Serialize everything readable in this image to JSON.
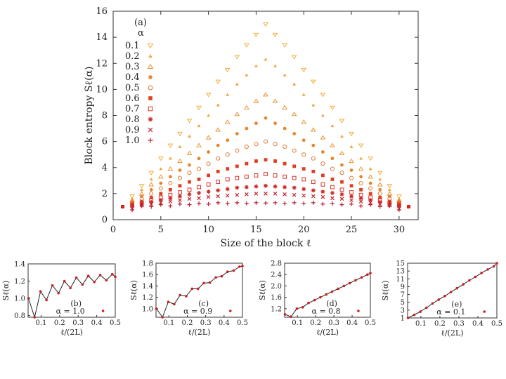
{
  "chart_data": {
    "main": {
      "type": "scatter",
      "panel_label": "(a)",
      "xlabel": "Size of the block ℓ",
      "ylabel": "Block entropy Sℓ(α)",
      "xlim": [
        0,
        32
      ],
      "ylim": [
        0,
        16
      ],
      "xticks": [
        "0",
        "5",
        "10",
        "15",
        "20",
        "25",
        "30"
      ],
      "yticks": [
        "0",
        "2",
        "4",
        "6",
        "8",
        "10",
        "12",
        "14",
        "16"
      ],
      "legend_title": "α",
      "legend_position": "top-left",
      "x": [
        1,
        2,
        3,
        4,
        5,
        6,
        7,
        8,
        9,
        10,
        11,
        12,
        13,
        14,
        15,
        16,
        17,
        18,
        19,
        20,
        21,
        22,
        23,
        24,
        25,
        26,
        27,
        28,
        29,
        30,
        31
      ],
      "series": [
        {
          "name": "0.1",
          "marker": "tri-down",
          "color": "#f0b040",
          "values": [
            1.0,
            1.8,
            2.6,
            3.6,
            4.7,
            5.7,
            6.6,
            7.6,
            8.6,
            9.6,
            10.6,
            11.5,
            12.5,
            13.4,
            14.2,
            15.0,
            14.2,
            13.4,
            12.5,
            11.5,
            10.6,
            9.6,
            8.6,
            7.6,
            6.6,
            5.7,
            4.7,
            3.6,
            2.6,
            1.8,
            1.0
          ]
        },
        {
          "name": "0.2",
          "marker": "tri-up-filled",
          "color": "#eda23a",
          "values": [
            1.0,
            1.6,
            2.3,
            3.1,
            3.9,
            4.7,
            5.6,
            6.4,
            7.2,
            8.0,
            8.8,
            9.6,
            10.4,
            11.1,
            11.8,
            12.3,
            11.8,
            11.1,
            10.4,
            9.6,
            8.8,
            8.0,
            7.2,
            6.4,
            5.6,
            4.7,
            3.9,
            3.1,
            2.3,
            1.6,
            1.0
          ]
        },
        {
          "name": "0.3",
          "marker": "tri-up",
          "color": "#e99535",
          "values": [
            1.0,
            1.5,
            2.0,
            2.7,
            3.3,
            3.9,
            4.5,
            5.1,
            5.7,
            6.3,
            6.9,
            7.5,
            8.1,
            8.6,
            9.1,
            9.6,
            9.1,
            8.6,
            8.1,
            7.5,
            6.9,
            6.3,
            5.7,
            5.1,
            4.5,
            3.9,
            3.3,
            2.7,
            2.0,
            1.5,
            1.0
          ]
        },
        {
          "name": "0.4",
          "marker": "circle-filled",
          "color": "#e6862e",
          "values": [
            1.0,
            1.4,
            1.8,
            2.3,
            2.8,
            3.3,
            3.8,
            4.2,
            4.7,
            5.2,
            5.7,
            6.1,
            6.6,
            7.0,
            7.4,
            7.8,
            7.4,
            7.0,
            6.6,
            6.1,
            5.7,
            5.2,
            4.7,
            4.2,
            3.8,
            3.3,
            2.8,
            2.3,
            1.8,
            1.4,
            1.0
          ]
        },
        {
          "name": "0.5",
          "marker": "circle",
          "color": "#e07832",
          "values": [
            1.0,
            1.3,
            1.6,
            2.0,
            2.4,
            2.8,
            3.2,
            3.6,
            3.9,
            4.3,
            4.7,
            5.0,
            5.3,
            5.6,
            5.8,
            6.0,
            5.8,
            5.6,
            5.3,
            5.0,
            4.7,
            4.3,
            3.9,
            3.6,
            3.2,
            2.8,
            2.4,
            2.0,
            1.6,
            1.3,
            1.0
          ]
        },
        {
          "name": "0.6",
          "marker": "square-filled",
          "color": "#dd4020",
          "values": [
            1.0,
            1.2,
            1.4,
            1.7,
            2.0,
            2.3,
            2.6,
            2.9,
            3.1,
            3.4,
            3.7,
            3.9,
            4.1,
            4.3,
            4.5,
            4.6,
            4.5,
            4.3,
            4.1,
            3.9,
            3.7,
            3.4,
            3.1,
            2.9,
            2.6,
            2.3,
            2.0,
            1.7,
            1.4,
            1.2,
            1.0
          ]
        },
        {
          "name": "0.7",
          "marker": "square",
          "color": "#d93528",
          "values": [
            1.0,
            1.1,
            1.3,
            1.5,
            1.7,
            1.9,
            2.1,
            2.3,
            2.5,
            2.7,
            2.9,
            3.1,
            3.2,
            3.3,
            3.4,
            3.5,
            3.4,
            3.3,
            3.2,
            3.1,
            2.9,
            2.7,
            2.5,
            2.3,
            2.1,
            1.9,
            1.7,
            1.5,
            1.3,
            1.1,
            1.0
          ]
        },
        {
          "name": "0.8",
          "marker": "star",
          "color": "#cf2a28",
          "values": [
            1.0,
            1.05,
            1.2,
            1.35,
            1.5,
            1.65,
            1.8,
            1.95,
            2.05,
            2.15,
            2.25,
            2.35,
            2.45,
            2.5,
            2.55,
            2.6,
            2.55,
            2.5,
            2.45,
            2.35,
            2.25,
            2.15,
            2.05,
            1.95,
            1.8,
            1.65,
            1.5,
            1.35,
            1.2,
            1.05,
            1.0
          ]
        },
        {
          "name": "0.9",
          "marker": "cross-x",
          "color": "#c42430",
          "values": [
            1.0,
            0.85,
            1.1,
            1.2,
            1.3,
            1.4,
            1.5,
            1.6,
            1.65,
            1.75,
            1.8,
            1.85,
            1.9,
            1.95,
            2.0,
            2.0,
            2.0,
            1.95,
            1.9,
            1.85,
            1.8,
            1.75,
            1.65,
            1.6,
            1.5,
            1.4,
            1.3,
            1.2,
            1.1,
            0.85,
            1.0
          ]
        },
        {
          "name": "1.0",
          "marker": "plus",
          "color": "#b81e30",
          "values": [
            1.0,
            0.75,
            1.05,
            1.0,
            1.15,
            1.05,
            1.2,
            1.15,
            1.25,
            1.2,
            1.3,
            1.25,
            1.3,
            1.25,
            1.3,
            1.28,
            1.3,
            1.25,
            1.3,
            1.25,
            1.3,
            1.2,
            1.25,
            1.15,
            1.2,
            1.05,
            1.15,
            1.0,
            1.05,
            0.75,
            1.0
          ]
        }
      ]
    },
    "insets": [
      {
        "panel_label": "(b)",
        "legend": "α = 1.0",
        "type": "line+scatter",
        "xlabel": "ℓ/(2L)",
        "ylabel": "Sℓ(α)",
        "xlim": [
          0.03,
          0.5
        ],
        "ylim": [
          0.78,
          1.4
        ],
        "xticks": [
          "0.1",
          "0.2",
          "0.3",
          "0.4",
          "0.5"
        ],
        "xtick_values": [
          0.1,
          0.2,
          0.3,
          0.4,
          0.5
        ],
        "yticks": [
          "0.8",
          "1.0",
          "1.2",
          "1.4"
        ],
        "ytick_values": [
          0.8,
          1.0,
          1.2,
          1.4
        ],
        "x": [
          0.032,
          0.065,
          0.097,
          0.129,
          0.161,
          0.194,
          0.226,
          0.258,
          0.29,
          0.323,
          0.355,
          0.387,
          0.419,
          0.452,
          0.484,
          0.5
        ],
        "y": [
          1.0,
          0.78,
          1.08,
          0.98,
          1.15,
          1.06,
          1.2,
          1.12,
          1.24,
          1.16,
          1.26,
          1.19,
          1.27,
          1.21,
          1.28,
          1.25
        ]
      },
      {
        "panel_label": "(c)",
        "legend": "α = 0.9",
        "type": "line+scatter",
        "xlabel": "ℓ/(2L)",
        "ylabel": "Sℓ(α)",
        "xlim": [
          0.03,
          0.5
        ],
        "ylim": [
          0.85,
          1.8
        ],
        "xticks": [
          "0.1",
          "0.2",
          "0.3",
          "0.4",
          "0.5"
        ],
        "xtick_values": [
          0.1,
          0.2,
          0.3,
          0.4,
          0.5
        ],
        "yticks": [
          "1.0",
          "1.2",
          "1.4",
          "1.6",
          "1.8"
        ],
        "ytick_values": [
          1.0,
          1.2,
          1.4,
          1.6,
          1.8
        ],
        "x": [
          0.032,
          0.065,
          0.097,
          0.129,
          0.161,
          0.194,
          0.226,
          0.258,
          0.29,
          0.323,
          0.355,
          0.387,
          0.419,
          0.452,
          0.484,
          0.5
        ],
        "y": [
          1.0,
          0.85,
          1.12,
          1.08,
          1.24,
          1.22,
          1.35,
          1.35,
          1.45,
          1.46,
          1.55,
          1.57,
          1.65,
          1.67,
          1.74,
          1.75
        ]
      },
      {
        "panel_label": "(d)",
        "legend": "α = 0.8",
        "type": "line+scatter",
        "xlabel": "ℓ/(2L)",
        "ylabel": "Sℓ(α)",
        "xlim": [
          0.03,
          0.5
        ],
        "ylim": [
          0.9,
          2.8
        ],
        "xticks": [
          "0.1",
          "0.2",
          "0.3",
          "0.4",
          "0.5"
        ],
        "xtick_values": [
          0.1,
          0.2,
          0.3,
          0.4,
          0.5
        ],
        "yticks": [
          "1.2",
          "1.6",
          "2.0",
          "2.4",
          "2.8"
        ],
        "ytick_values": [
          1.2,
          1.6,
          2.0,
          2.4,
          2.8
        ],
        "x": [
          0.032,
          0.065,
          0.097,
          0.129,
          0.161,
          0.194,
          0.226,
          0.258,
          0.29,
          0.323,
          0.355,
          0.387,
          0.419,
          0.452,
          0.484,
          0.5
        ],
        "y": [
          1.0,
          0.92,
          1.2,
          1.25,
          1.4,
          1.5,
          1.6,
          1.7,
          1.8,
          1.9,
          2.0,
          2.1,
          2.2,
          2.3,
          2.4,
          2.45
        ]
      },
      {
        "panel_label": "(e)",
        "legend": "α = 0.1",
        "type": "line+scatter",
        "xlabel": "ℓ/(2L)",
        "ylabel": "Sℓ(α)",
        "xlim": [
          0.03,
          0.5
        ],
        "ylim": [
          1,
          15
        ],
        "xticks": [
          "0.1",
          "0.2",
          "0.3",
          "0.4",
          "0.5"
        ],
        "xtick_values": [
          0.1,
          0.2,
          0.3,
          0.4,
          0.5
        ],
        "yticks": [
          "1",
          "3",
          "5",
          "7",
          "9",
          "11",
          "13",
          "15"
        ],
        "ytick_values": [
          1,
          3,
          5,
          7,
          9,
          11,
          13,
          15
        ],
        "x": [
          0.032,
          0.065,
          0.097,
          0.129,
          0.161,
          0.194,
          0.226,
          0.258,
          0.29,
          0.323,
          0.355,
          0.387,
          0.419,
          0.452,
          0.484,
          0.5
        ],
        "y": [
          1.0,
          1.8,
          2.6,
          3.6,
          4.7,
          5.7,
          6.6,
          7.6,
          8.6,
          9.6,
          10.6,
          11.5,
          12.5,
          13.4,
          14.2,
          15.0
        ]
      }
    ]
  }
}
